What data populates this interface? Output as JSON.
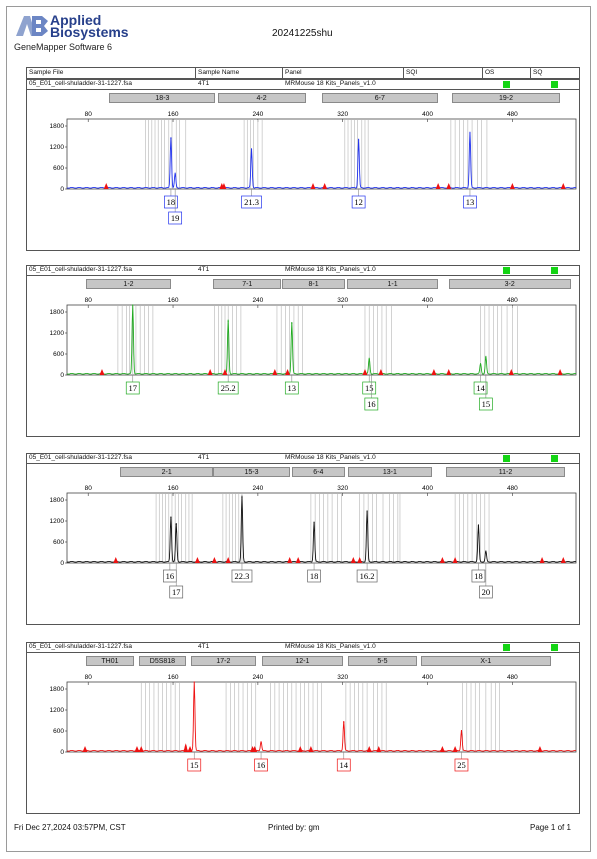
{
  "header": {
    "logo_line1": "Applied",
    "logo_line2": "Biosystems",
    "software": "GeneMapper Software 6",
    "report_title": "20241225shu"
  },
  "table_header": {
    "sample_file": "Sample File",
    "sample_name": "Sample Name",
    "panel": "Panel",
    "sqi": "SQI",
    "os": "OS",
    "sq": "SQ"
  },
  "footer": {
    "date": "Fri Dec 27,2024 03:57PM, CST",
    "printed_by": "Printed by: gm",
    "page": "Page 1 of 1"
  },
  "colors": {
    "blue": "#2233ee",
    "green": "#22aa22",
    "black": "#111111",
    "red": "#ee1111",
    "marker_tri": "#ee1111",
    "ok": "#14d414"
  },
  "chart_data": [
    {
      "type": "line",
      "sample_file": "05_E01_cell-shuladder-31-1227.fsa",
      "sample_name": "4T1",
      "panel": "MRMouse 18 Kits_Panels_v1.0",
      "color": "#2233ee",
      "xlim": [
        60,
        540
      ],
      "ylim": [
        0,
        2000
      ],
      "x_ticks": [
        "80",
        "160",
        "240",
        "320",
        "400",
        "480"
      ],
      "y_ticks": [
        "0",
        "600",
        "1200",
        "1800"
      ],
      "markers": [
        {
          "name": "18-3",
          "start": 100,
          "end": 200
        },
        {
          "name": "4-2",
          "start": 202,
          "end": 285
        },
        {
          "name": "6-7",
          "start": 300,
          "end": 410
        },
        {
          "name": "19-2",
          "start": 423,
          "end": 525
        }
      ],
      "bins": [
        134,
        137,
        140,
        143,
        146,
        149,
        152,
        156,
        159,
        163,
        166,
        172,
        227,
        230,
        233,
        236,
        240,
        244,
        322,
        325,
        328,
        331,
        334,
        338,
        341,
        344,
        422,
        426,
        430,
        434,
        438,
        442,
        447,
        451,
        456
      ],
      "peaks": [
        {
          "x": 158,
          "y": 1450
        },
        {
          "x": 162,
          "y": 420
        },
        {
          "x": 234,
          "y": 1130
        },
        {
          "x": 335,
          "y": 1400
        },
        {
          "x": 440,
          "y": 1600
        }
      ],
      "ladder": [
        97,
        206,
        208,
        292,
        303,
        410,
        420,
        480,
        528
      ],
      "allele_labels": [
        {
          "text": "18",
          "x": 158,
          "row": 0
        },
        {
          "text": "19",
          "x": 162,
          "row": 1
        },
        {
          "text": "21.3",
          "x": 234,
          "row": 0
        },
        {
          "text": "12",
          "x": 335,
          "row": 0
        },
        {
          "text": "13",
          "x": 440,
          "row": 0
        }
      ]
    },
    {
      "type": "line",
      "sample_file": "05_E01_cell-shuladder-31-1227.fsa",
      "sample_name": "4T1",
      "panel": "MRMouse 18 Kits_Panels_v1.0",
      "color": "#22aa22",
      "xlim": [
        60,
        540
      ],
      "ylim": [
        0,
        2000
      ],
      "x_ticks": [
        "80",
        "160",
        "240",
        "320",
        "400",
        "480"
      ],
      "y_ticks": [
        "0",
        "600",
        "1200",
        "1800"
      ],
      "markers": [
        {
          "name": "1-2",
          "start": 78,
          "end": 158
        },
        {
          "name": "7-1",
          "start": 198,
          "end": 262
        },
        {
          "name": "8-1",
          "start": 263,
          "end": 322
        },
        {
          "name": "1-1",
          "start": 324,
          "end": 410
        },
        {
          "name": "3-2",
          "start": 420,
          "end": 535
        }
      ],
      "bins": [
        108,
        112,
        116,
        119,
        122,
        125,
        129,
        133,
        137,
        141,
        199,
        203,
        206,
        209,
        212,
        216,
        220,
        224,
        258,
        262,
        266,
        270,
        274,
        278,
        282,
        341,
        345,
        349,
        353,
        357,
        361,
        366,
        450,
        454,
        458,
        462,
        466,
        470,
        475,
        480,
        485
      ],
      "peaks": [
        {
          "x": 122,
          "y": 2000
        },
        {
          "x": 212,
          "y": 1540
        },
        {
          "x": 272,
          "y": 1480
        },
        {
          "x": 345,
          "y": 450
        },
        {
          "x": 450,
          "y": 300
        },
        {
          "x": 455,
          "y": 500
        }
      ],
      "ladder": [
        93,
        195,
        209,
        256,
        268,
        341,
        356,
        406,
        420,
        479,
        525
      ],
      "allele_labels": [
        {
          "text": "17",
          "x": 122,
          "row": 0
        },
        {
          "text": "25.2",
          "x": 212,
          "row": 0
        },
        {
          "text": "13",
          "x": 272,
          "row": 0
        },
        {
          "text": "15",
          "x": 345,
          "row": 0
        },
        {
          "text": "16",
          "x": 347,
          "row": 1
        },
        {
          "text": "14",
          "x": 450,
          "row": 0
        },
        {
          "text": "15",
          "x": 455,
          "row": 1
        }
      ]
    },
    {
      "type": "line",
      "sample_file": "05_E01_cell-shuladder-31-1227.fsa",
      "sample_name": "4T1",
      "panel": "MRMouse 18 Kits_Panels_v1.0",
      "color": "#111111",
      "xlim": [
        60,
        540
      ],
      "ylim": [
        0,
        2000
      ],
      "x_ticks": [
        "80",
        "160",
        "240",
        "320",
        "400",
        "480"
      ],
      "y_ticks": [
        "0",
        "600",
        "1200",
        "1800"
      ],
      "markers": [
        {
          "name": "2-1",
          "start": 110,
          "end": 198
        },
        {
          "name": "15-3",
          "start": 198,
          "end": 270
        },
        {
          "name": "6-4",
          "start": 272,
          "end": 322
        },
        {
          "name": "13-1",
          "start": 325,
          "end": 404
        },
        {
          "name": "11-2",
          "start": 417,
          "end": 530
        }
      ],
      "bins": [
        144,
        147,
        150,
        153,
        156,
        159,
        162,
        165,
        168,
        172,
        175,
        178,
        207,
        210,
        213,
        216,
        219,
        222,
        225,
        290,
        294,
        298,
        302,
        306,
        310,
        315,
        319,
        336,
        340,
        344,
        348,
        352,
        358,
        364,
        368,
        372,
        374,
        426,
        430,
        434,
        438,
        442,
        446,
        450,
        454,
        458
      ],
      "peaks": [
        {
          "x": 158,
          "y": 1300
        },
        {
          "x": 163,
          "y": 1100
        },
        {
          "x": 225,
          "y": 1880
        },
        {
          "x": 293,
          "y": 1150
        },
        {
          "x": 343,
          "y": 1460
        },
        {
          "x": 448,
          "y": 1060
        },
        {
          "x": 455,
          "y": 310
        }
      ],
      "ladder": [
        106,
        183,
        199,
        212,
        270,
        278,
        330,
        336,
        414,
        426,
        508,
        528
      ],
      "allele_labels": [
        {
          "text": "16",
          "x": 157,
          "row": 0
        },
        {
          "text": "17",
          "x": 163,
          "row": 1
        },
        {
          "text": "22.3",
          "x": 225,
          "row": 0
        },
        {
          "text": "18",
          "x": 293,
          "row": 0
        },
        {
          "text": "16.2",
          "x": 343,
          "row": 0
        },
        {
          "text": "18",
          "x": 448,
          "row": 0
        },
        {
          "text": "20",
          "x": 455,
          "row": 1
        }
      ]
    },
    {
      "type": "line",
      "sample_file": "05_E01_cell-shuladder-31-1227.fsa",
      "sample_name": "4T1",
      "panel": "MRMouse 18 Kits_Panels_v1.0",
      "color": "#ee1111",
      "xlim": [
        60,
        540
      ],
      "ylim": [
        0,
        2000
      ],
      "x_ticks": [
        "80",
        "160",
        "240",
        "320",
        "400",
        "480"
      ],
      "y_ticks": [
        "0",
        "600",
        "1200",
        "1800"
      ],
      "markers": [
        {
          "name": "TH01",
          "start": 78,
          "end": 123
        },
        {
          "name": "D5S818",
          "start": 128,
          "end": 172
        },
        {
          "name": "17-2",
          "start": 177,
          "end": 238
        },
        {
          "name": "12-1",
          "start": 244,
          "end": 320
        },
        {
          "name": "5-5",
          "start": 325,
          "end": 390
        },
        {
          "name": "X-1",
          "start": 394,
          "end": 516
        }
      ],
      "bins": [
        130,
        134,
        138,
        142,
        146,
        150,
        154,
        158,
        162,
        166,
        210,
        214,
        218,
        222,
        226,
        230,
        234,
        238,
        252,
        256,
        260,
        264,
        268,
        272,
        276,
        280,
        284,
        288,
        292,
        296,
        300,
        323,
        327,
        331,
        335,
        339,
        343,
        349,
        353,
        357,
        361,
        433,
        437,
        441,
        445,
        449,
        455,
        460,
        464,
        468
      ],
      "peaks": [
        {
          "x": 180,
          "y": 2000
        },
        {
          "x": 172,
          "y": 180
        },
        {
          "x": 243,
          "y": 280
        },
        {
          "x": 321,
          "y": 850
        },
        {
          "x": 432,
          "y": 600
        }
      ],
      "ladder": [
        77,
        126,
        130,
        172,
        176,
        235,
        237,
        280,
        290,
        345,
        354,
        414,
        426,
        506
      ],
      "allele_labels": [
        {
          "text": "15",
          "x": 180,
          "row": 0
        },
        {
          "text": "16",
          "x": 243,
          "row": 0
        },
        {
          "text": "14",
          "x": 321,
          "row": 0
        },
        {
          "text": "25",
          "x": 432,
          "row": 0
        }
      ]
    }
  ]
}
